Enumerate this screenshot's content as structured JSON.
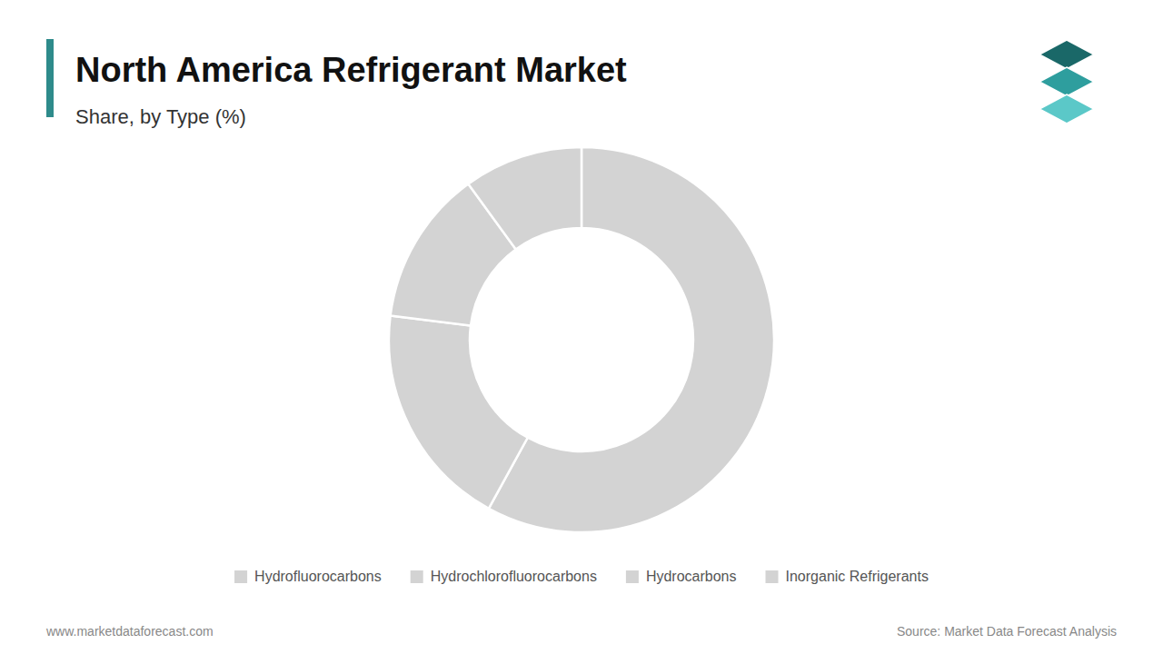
{
  "chart_data": {
    "type": "donut",
    "title": "North America Refrigerant Market",
    "subtitle": "Share, by Type (%)",
    "categories": [
      "Hydrofluorocarbons",
      "Hydrochlorofluorocarbons",
      "Hydrocarbons",
      "Inorganic Refrigerants"
    ],
    "values": [
      58.0,
      19.0,
      13.0,
      10.0
    ],
    "color": "#d3d3d3",
    "legend": "bottom",
    "annotations": [
      "www.marketdataforecast.com",
      "Source: Market Data Forecast Analysis"
    ]
  }
}
